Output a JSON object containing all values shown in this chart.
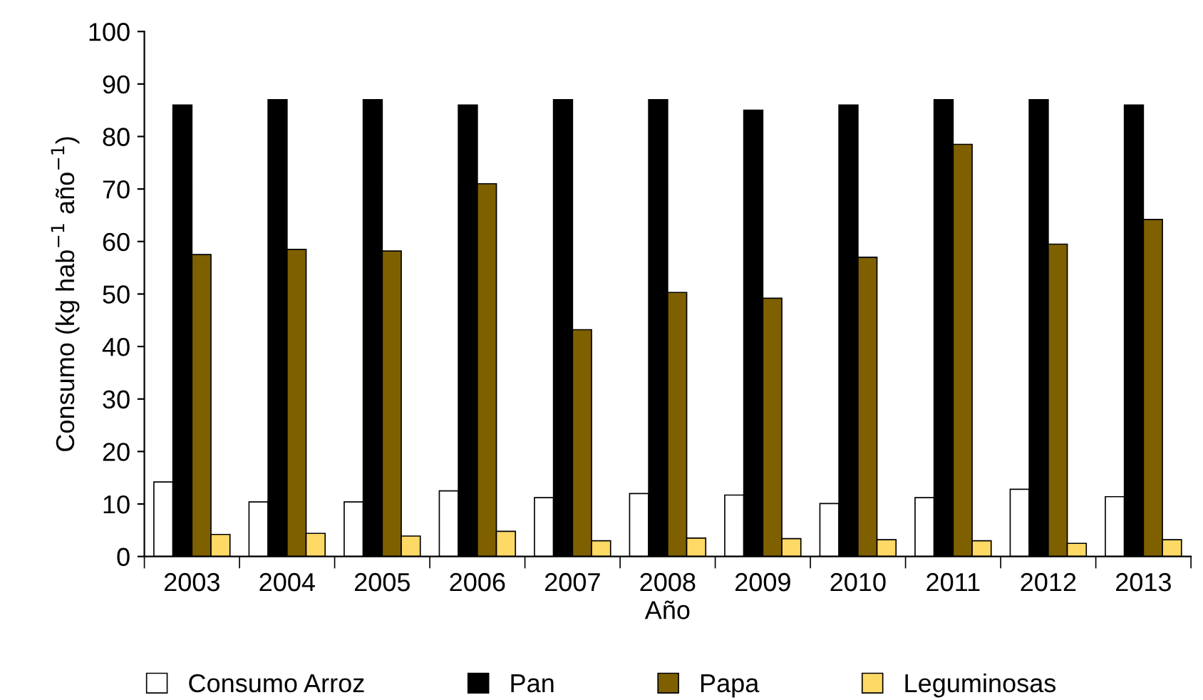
{
  "chart_data": {
    "type": "bar",
    "xlabel": "Año",
    "ylabel": "Consumo (kg hab$^{−1}$ año$^{−1}$)",
    "categories": [
      "2003",
      "2004",
      "2005",
      "2006",
      "2007",
      "2008",
      "2009",
      "2010",
      "2011",
      "2012",
      "2013"
    ],
    "series": [
      {
        "name": "Consumo Arroz",
        "color": "#ffffff",
        "values": [
          14.2,
          10.4,
          10.4,
          12.5,
          11.2,
          12.0,
          11.7,
          10.1,
          11.2,
          12.8,
          11.4
        ]
      },
      {
        "name": "Pan",
        "color": "#000000",
        "values": [
          86,
          87,
          87,
          86,
          87,
          87,
          85,
          86,
          87,
          87,
          86
        ]
      },
      {
        "name": "Papa",
        "color": "#7f6000",
        "values": [
          57.5,
          58.5,
          58.2,
          71,
          43.2,
          50.3,
          49.2,
          57,
          78.5,
          59.5,
          64.2
        ]
      },
      {
        "name": "Leguminosas",
        "color": "#ffd966",
        "values": [
          4.2,
          4.4,
          3.9,
          4.8,
          3.0,
          3.5,
          3.4,
          3.2,
          3.0,
          2.5,
          3.2
        ]
      }
    ],
    "ylim": [
      0,
      100
    ],
    "yticks": [
      0,
      10,
      20,
      30,
      40,
      50,
      60,
      70,
      80,
      90,
      100
    ],
    "grid": false,
    "legend": "bottom"
  }
}
